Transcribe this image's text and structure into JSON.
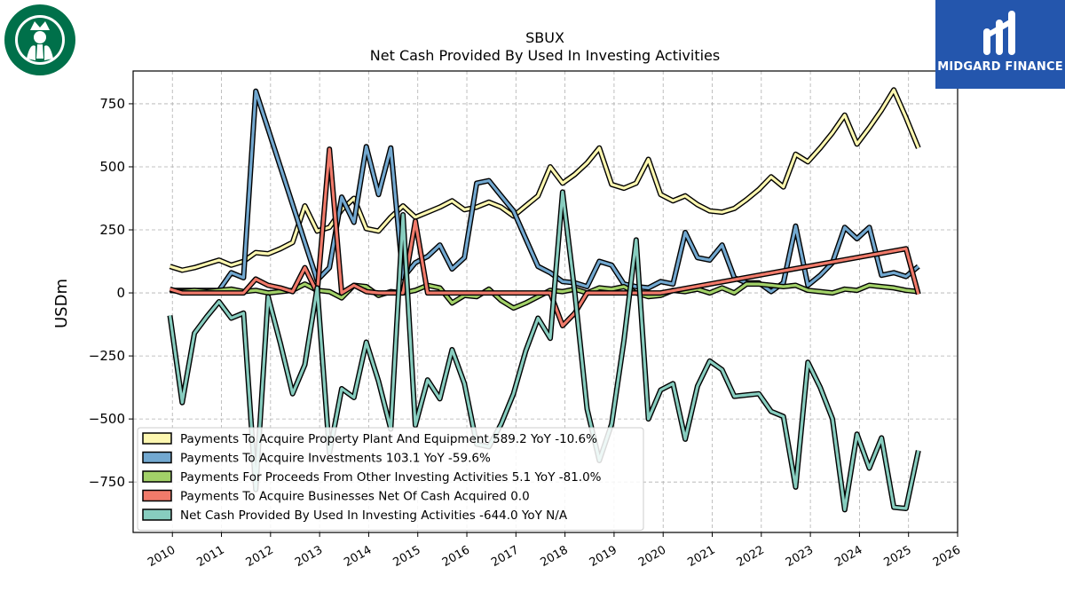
{
  "page": {
    "ticker": "SBUX",
    "subtitle": "Net Cash Provided By Used In Investing Activities"
  },
  "brand": {
    "name": "MIDGARD FINANCE",
    "logo_icon": "midgard-logo-icon",
    "company_logo_icon": "starbucks-siren-logo-icon"
  },
  "chart_data": {
    "type": "line",
    "title": "SBUX",
    "subtitle": "Net Cash Provided By Used In Investing Activities",
    "xlabel": "",
    "ylabel": "USDm",
    "xlim": [
      2009.2,
      2026.0
    ],
    "ylim": [
      -950,
      880
    ],
    "xticks": [
      2010,
      2011,
      2012,
      2013,
      2014,
      2015,
      2016,
      2017,
      2018,
      2019,
      2020,
      2021,
      2022,
      2023,
      2024,
      2025,
      2026
    ],
    "yticks": [
      -750,
      -500,
      -250,
      0,
      250,
      500,
      750
    ],
    "ytick_labels": [
      "−750",
      "−500",
      "−250",
      "0",
      "250",
      "500",
      "750"
    ],
    "grid": true,
    "legend_position": "lower-left",
    "series": [
      {
        "name": "Payments To Acquire Property Plant And Equipment",
        "legend": "Payments To Acquire Property Plant And Equipment  589.2 YoY -10.6%",
        "color": "#fdf7b0",
        "points": [
          [
            2009.95,
            105
          ],
          [
            2010.2,
            90
          ],
          [
            2010.45,
            100
          ],
          [
            2010.7,
            115
          ],
          [
            2010.95,
            130
          ],
          [
            2011.2,
            110
          ],
          [
            2011.45,
            125
          ],
          [
            2011.7,
            160
          ],
          [
            2011.95,
            155
          ],
          [
            2012.2,
            175
          ],
          [
            2012.45,
            200
          ],
          [
            2012.7,
            345
          ],
          [
            2012.95,
            245
          ],
          [
            2013.2,
            260
          ],
          [
            2013.45,
            330
          ],
          [
            2013.7,
            375
          ],
          [
            2013.95,
            255
          ],
          [
            2014.2,
            245
          ],
          [
            2014.45,
            300
          ],
          [
            2014.7,
            345
          ],
          [
            2014.95,
            300
          ],
          [
            2015.2,
            320
          ],
          [
            2015.45,
            340
          ],
          [
            2015.7,
            365
          ],
          [
            2015.95,
            330
          ],
          [
            2016.2,
            340
          ],
          [
            2016.45,
            360
          ],
          [
            2016.7,
            340
          ],
          [
            2016.95,
            305
          ],
          [
            2017.2,
            345
          ],
          [
            2017.45,
            385
          ],
          [
            2017.7,
            500
          ],
          [
            2017.95,
            435
          ],
          [
            2018.2,
            470
          ],
          [
            2018.45,
            515
          ],
          [
            2018.7,
            575
          ],
          [
            2018.95,
            430
          ],
          [
            2019.2,
            415
          ],
          [
            2019.45,
            435
          ],
          [
            2019.7,
            530
          ],
          [
            2019.95,
            390
          ],
          [
            2020.2,
            365
          ],
          [
            2020.45,
            385
          ],
          [
            2020.7,
            350
          ],
          [
            2020.95,
            325
          ],
          [
            2021.2,
            320
          ],
          [
            2021.45,
            335
          ],
          [
            2021.7,
            370
          ],
          [
            2021.95,
            410
          ],
          [
            2022.2,
            460
          ],
          [
            2022.45,
            420
          ],
          [
            2022.7,
            550
          ],
          [
            2022.95,
            520
          ],
          [
            2023.2,
            575
          ],
          [
            2023.45,
            635
          ],
          [
            2023.7,
            705
          ],
          [
            2023.95,
            590
          ],
          [
            2024.2,
            655
          ],
          [
            2024.45,
            725
          ],
          [
            2024.7,
            805
          ],
          [
            2024.95,
            695
          ],
          [
            2025.2,
            575
          ]
        ]
      },
      {
        "name": "Payments To Acquire Investments",
        "legend": "Payments To Acquire Investments  103.1 YoY -59.6%",
        "color": "#72a8d0",
        "points": [
          [
            2009.95,
            10
          ],
          [
            2010.2,
            10
          ],
          [
            2010.45,
            10
          ],
          [
            2010.7,
            10
          ],
          [
            2010.95,
            10
          ],
          [
            2011.2,
            80
          ],
          [
            2011.45,
            60
          ],
          [
            2011.7,
            800
          ],
          [
            2011.95,
            650
          ],
          [
            2012.2,
            500
          ],
          [
            2012.45,
            350
          ],
          [
            2012.7,
            200
          ],
          [
            2012.95,
            50
          ],
          [
            2013.2,
            100
          ],
          [
            2013.45,
            380
          ],
          [
            2013.7,
            280
          ],
          [
            2013.95,
            580
          ],
          [
            2014.2,
            390
          ],
          [
            2014.45,
            575
          ],
          [
            2014.7,
            60
          ],
          [
            2014.95,
            120
          ],
          [
            2015.2,
            145
          ],
          [
            2015.45,
            190
          ],
          [
            2015.7,
            95
          ],
          [
            2015.95,
            140
          ],
          [
            2016.2,
            435
          ],
          [
            2016.45,
            445
          ],
          [
            2016.7,
            385
          ],
          [
            2016.95,
            325
          ],
          [
            2017.2,
            215
          ],
          [
            2017.45,
            105
          ],
          [
            2017.7,
            80
          ],
          [
            2017.95,
            45
          ],
          [
            2018.2,
            40
          ],
          [
            2018.45,
            25
          ],
          [
            2018.7,
            125
          ],
          [
            2018.95,
            110
          ],
          [
            2019.2,
            35
          ],
          [
            2019.45,
            25
          ],
          [
            2019.7,
            20
          ],
          [
            2019.95,
            45
          ],
          [
            2020.2,
            35
          ],
          [
            2020.45,
            240
          ],
          [
            2020.7,
            140
          ],
          [
            2020.95,
            130
          ],
          [
            2021.2,
            190
          ],
          [
            2021.45,
            60
          ],
          [
            2021.7,
            40
          ],
          [
            2021.95,
            40
          ],
          [
            2022.2,
            5
          ],
          [
            2022.45,
            40
          ],
          [
            2022.7,
            265
          ],
          [
            2022.95,
            30
          ],
          [
            2023.2,
            70
          ],
          [
            2023.45,
            120
          ],
          [
            2023.7,
            260
          ],
          [
            2023.95,
            215
          ],
          [
            2024.2,
            260
          ],
          [
            2024.45,
            70
          ],
          [
            2024.7,
            80
          ],
          [
            2024.95,
            65
          ],
          [
            2025.2,
            105
          ]
        ]
      },
      {
        "name": "Payments For Proceeds From Other Investing Activities",
        "legend": "Payments For Proceeds From Other Investing Activities  5.1 YoY -81.0%",
        "color": "#a2d168",
        "points": [
          [
            2009.95,
            10
          ],
          [
            2010.2,
            5
          ],
          [
            2010.45,
            10
          ],
          [
            2010.7,
            5
          ],
          [
            2010.95,
            10
          ],
          [
            2011.2,
            15
          ],
          [
            2011.45,
            5
          ],
          [
            2011.7,
            10
          ],
          [
            2011.95,
            0
          ],
          [
            2012.2,
            5
          ],
          [
            2012.45,
            10
          ],
          [
            2012.7,
            35
          ],
          [
            2012.95,
            10
          ],
          [
            2013.2,
            5
          ],
          [
            2013.45,
            -20
          ],
          [
            2013.7,
            30
          ],
          [
            2013.95,
            25
          ],
          [
            2014.2,
            -10
          ],
          [
            2014.45,
            5
          ],
          [
            2014.7,
            0
          ],
          [
            2014.95,
            10
          ],
          [
            2015.2,
            30
          ],
          [
            2015.45,
            20
          ],
          [
            2015.7,
            -40
          ],
          [
            2015.95,
            -10
          ],
          [
            2016.2,
            -15
          ],
          [
            2016.45,
            15
          ],
          [
            2016.7,
            -30
          ],
          [
            2016.95,
            -60
          ],
          [
            2017.2,
            -40
          ],
          [
            2017.45,
            -15
          ],
          [
            2017.7,
            10
          ],
          [
            2017.95,
            5
          ],
          [
            2018.2,
            15
          ],
          [
            2018.45,
            0
          ],
          [
            2018.7,
            20
          ],
          [
            2018.95,
            15
          ],
          [
            2019.2,
            25
          ],
          [
            2019.45,
            0
          ],
          [
            2019.7,
            -15
          ],
          [
            2019.95,
            -10
          ],
          [
            2020.2,
            10
          ],
          [
            2020.45,
            5
          ],
          [
            2020.7,
            15
          ],
          [
            2020.95,
            0
          ],
          [
            2021.2,
            20
          ],
          [
            2021.45,
            0
          ],
          [
            2021.7,
            35
          ],
          [
            2021.95,
            35
          ],
          [
            2022.2,
            30
          ],
          [
            2022.45,
            25
          ],
          [
            2022.7,
            30
          ],
          [
            2022.95,
            10
          ],
          [
            2023.2,
            5
          ],
          [
            2023.45,
            0
          ],
          [
            2023.7,
            15
          ],
          [
            2023.95,
            10
          ],
          [
            2024.2,
            30
          ],
          [
            2024.45,
            25
          ],
          [
            2024.7,
            20
          ],
          [
            2024.95,
            10
          ],
          [
            2025.2,
            5
          ]
        ]
      },
      {
        "name": "Payments To Acquire Businesses Net Of Cash Acquired",
        "legend": "Payments To Acquire Businesses Net Of Cash Acquired  0.0",
        "color": "#f07a6a",
        "points": [
          [
            2009.95,
            15
          ],
          [
            2010.2,
            0
          ],
          [
            2010.45,
            0
          ],
          [
            2010.7,
            0
          ],
          [
            2010.95,
            0
          ],
          [
            2011.2,
            0
          ],
          [
            2011.45,
            0
          ],
          [
            2011.7,
            55
          ],
          [
            2011.95,
            30
          ],
          [
            2012.2,
            20
          ],
          [
            2012.45,
            5
          ],
          [
            2012.7,
            100
          ],
          [
            2012.95,
            0
          ],
          [
            2013.2,
            570
          ],
          [
            2013.45,
            0
          ],
          [
            2013.7,
            30
          ],
          [
            2013.95,
            5
          ],
          [
            2014.2,
            0
          ],
          [
            2014.45,
            0
          ],
          [
            2014.7,
            0
          ],
          [
            2014.95,
            285
          ],
          [
            2015.2,
            0
          ],
          [
            2015.45,
            0
          ],
          [
            2015.7,
            0
          ],
          [
            2015.95,
            0
          ],
          [
            2016.2,
            0
          ],
          [
            2016.45,
            0
          ],
          [
            2016.7,
            0
          ],
          [
            2016.95,
            0
          ],
          [
            2017.2,
            0
          ],
          [
            2017.45,
            0
          ],
          [
            2017.7,
            0
          ],
          [
            2017.95,
            -130
          ],
          [
            2018.2,
            -80
          ],
          [
            2018.45,
            0
          ],
          [
            2018.7,
            0
          ],
          [
            2018.95,
            0
          ],
          [
            2019.2,
            0
          ],
          [
            2019.45,
            0
          ],
          [
            2019.7,
            0
          ],
          [
            2019.95,
            0
          ],
          [
            2024.95,
            175
          ],
          [
            2025.2,
            -5
          ]
        ]
      },
      {
        "name": "Net Cash Provided By Used In Investing Activities",
        "legend": "Net Cash Provided By Used In Investing Activities  -644.0 YoY N/A",
        "color": "#87cdbf",
        "points": [
          [
            2009.95,
            -90
          ],
          [
            2010.2,
            -435
          ],
          [
            2010.45,
            -160
          ],
          [
            2010.7,
            -95
          ],
          [
            2010.95,
            -35
          ],
          [
            2011.2,
            -100
          ],
          [
            2011.45,
            -80
          ],
          [
            2011.7,
            -780
          ],
          [
            2011.95,
            -15
          ],
          [
            2012.2,
            -200
          ],
          [
            2012.45,
            -400
          ],
          [
            2012.7,
            -285
          ],
          [
            2012.95,
            20
          ],
          [
            2013.2,
            -635
          ],
          [
            2013.45,
            -380
          ],
          [
            2013.7,
            -415
          ],
          [
            2013.95,
            -195
          ],
          [
            2014.2,
            -350
          ],
          [
            2014.45,
            -540
          ],
          [
            2014.7,
            310
          ],
          [
            2014.95,
            -525
          ],
          [
            2015.2,
            -345
          ],
          [
            2015.45,
            -420
          ],
          [
            2015.7,
            -225
          ],
          [
            2015.95,
            -360
          ],
          [
            2016.2,
            -600
          ],
          [
            2016.45,
            -610
          ],
          [
            2016.7,
            -520
          ],
          [
            2016.95,
            -400
          ],
          [
            2017.2,
            -230
          ],
          [
            2017.45,
            -100
          ],
          [
            2017.7,
            -180
          ],
          [
            2017.95,
            400
          ],
          [
            2018.2,
            0
          ],
          [
            2018.45,
            -460
          ],
          [
            2018.7,
            -665
          ],
          [
            2018.95,
            -520
          ],
          [
            2019.2,
            -190
          ],
          [
            2019.45,
            210
          ],
          [
            2019.7,
            -500
          ],
          [
            2019.95,
            -385
          ],
          [
            2020.2,
            -360
          ],
          [
            2020.45,
            -580
          ],
          [
            2020.7,
            -370
          ],
          [
            2020.95,
            -270
          ],
          [
            2021.2,
            -305
          ],
          [
            2021.45,
            -410
          ],
          [
            2021.7,
            -405
          ],
          [
            2021.95,
            -400
          ],
          [
            2022.2,
            -470
          ],
          [
            2022.45,
            -490
          ],
          [
            2022.7,
            -770
          ],
          [
            2022.95,
            -275
          ],
          [
            2023.2,
            -375
          ],
          [
            2023.45,
            -500
          ],
          [
            2023.7,
            -860
          ],
          [
            2023.95,
            -560
          ],
          [
            2024.2,
            -695
          ],
          [
            2024.45,
            -575
          ],
          [
            2024.7,
            -850
          ],
          [
            2024.95,
            -855
          ],
          [
            2025.2,
            -625
          ]
        ]
      }
    ]
  }
}
